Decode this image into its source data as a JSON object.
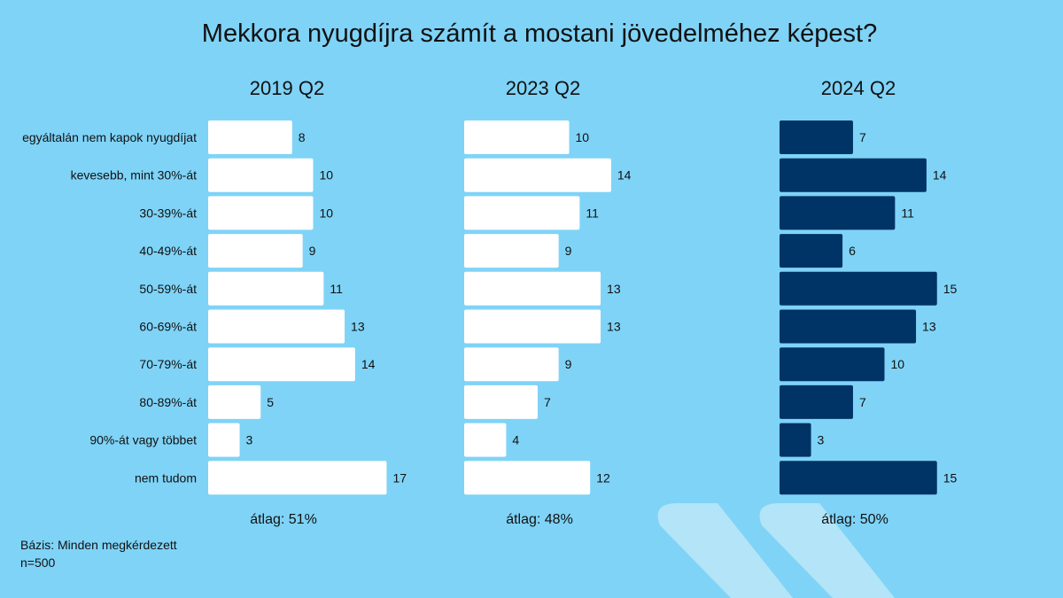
{
  "title": "Mekkora nyugdíjra számít a mostani jövedelméhez képest?",
  "footer": {
    "base": "Bázis: Minden megkérdezett",
    "n": "n=500"
  },
  "colors": {
    "background": "#7fd3f7",
    "white_bar": "#ffffff",
    "navy_bar": "#003366",
    "decor_chevron": "#b3e4f8"
  },
  "chart_data": [
    {
      "type": "bar",
      "orientation": "horizontal",
      "title": "2019 Q2",
      "categories": [
        "egyáltalán nem kapok nyugdíjat",
        "kevesebb, mint 30%-át",
        "30-39%-át",
        "40-49%-át",
        "50-59%-át",
        "60-69%-át",
        "70-79%-át",
        "80-89%-át",
        "90%-át vagy többet",
        "nem tudom"
      ],
      "values": [
        8,
        10,
        10,
        9,
        11,
        13,
        14,
        5,
        3,
        17
      ],
      "bar_color": "#ffffff",
      "average": "átlag: 51%"
    },
    {
      "type": "bar",
      "orientation": "horizontal",
      "title": "2023 Q2",
      "categories": [
        "egyáltalán nem kapok nyugdíjat",
        "kevesebb, mint 30%-át",
        "30-39%-át",
        "40-49%-át",
        "50-59%-át",
        "60-69%-át",
        "70-79%-át",
        "80-89%-át",
        "90%-át vagy többet",
        "nem tudom"
      ],
      "values": [
        10,
        14,
        11,
        9,
        13,
        13,
        9,
        7,
        4,
        12
      ],
      "bar_color": "#ffffff",
      "average": "átlag: 48%"
    },
    {
      "type": "bar",
      "orientation": "horizontal",
      "title": "2024 Q2",
      "categories": [
        "egyáltalán nem kapok nyugdíjat",
        "kevesebb, mint 30%-át",
        "30-39%-át",
        "40-49%-át",
        "50-59%-át",
        "60-69%-át",
        "70-79%-át",
        "80-89%-át",
        "90%-át vagy többet",
        "nem tudom"
      ],
      "values": [
        7,
        14,
        11,
        6,
        15,
        13,
        10,
        7,
        3,
        15
      ],
      "bar_color": "#003366",
      "average": "átlag: 50%"
    }
  ]
}
